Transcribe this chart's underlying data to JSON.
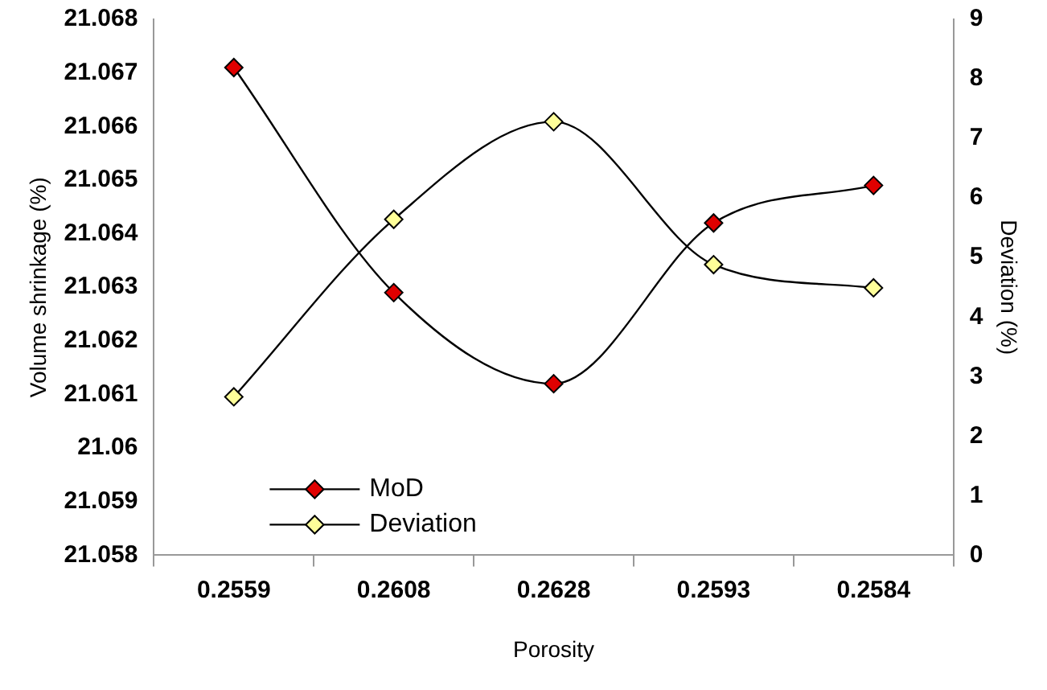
{
  "chart_data": {
    "type": "line",
    "xlabel": "Porosity",
    "ylabel": "Volume shrinkage (%)",
    "y2label": "Deviation (%)",
    "categories": [
      "0.2559",
      "0.2608",
      "0.2628",
      "0.2593",
      "0.2584"
    ],
    "series": [
      {
        "name": "MoD",
        "color": "#e00000",
        "values": [
          21.0671,
          21.0629,
          21.0612,
          21.0642,
          21.0649
        ]
      },
      {
        "name": "Deviation",
        "color": "#ffff99",
        "axis": "y2",
        "values": [
          2.66,
          5.64,
          7.28,
          4.88,
          4.49
        ]
      }
    ],
    "ylim": [
      21.058,
      21.068
    ],
    "yticks": [
      21.058,
      21.059,
      21.06,
      21.061,
      21.062,
      21.063,
      21.064,
      21.065,
      21.066,
      21.067,
      21.068
    ],
    "y2lim": [
      0,
      9
    ],
    "y2ticks": [
      0,
      1,
      2,
      3,
      4,
      5,
      6,
      7,
      8,
      9
    ],
    "legend": "bottom left",
    "marker": "diamond",
    "line_style": "solid"
  }
}
